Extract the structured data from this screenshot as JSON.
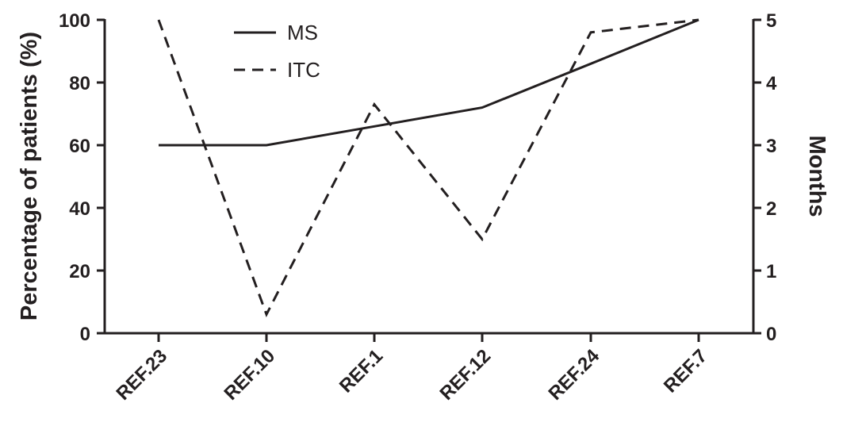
{
  "chart_data": {
    "type": "line",
    "categories": [
      "REF.23",
      "REF.10",
      "REF.1",
      "REF.12",
      "REF.24",
      "REF.7"
    ],
    "ylabel": "Percentage of patients (%)",
    "y2label": "Months",
    "ylim": [
      0,
      100
    ],
    "y2lim": [
      0,
      5
    ],
    "yticks": [
      "0",
      "20",
      "40",
      "60",
      "80",
      "100"
    ],
    "y2ticks": [
      "0",
      "1",
      "2",
      "3",
      "4",
      "5"
    ],
    "grid": false,
    "legend_position": "top-left",
    "series": [
      {
        "name": "MS",
        "axis": "left",
        "style": "solid",
        "values": [
          60,
          60,
          66,
          72,
          86,
          100
        ]
      },
      {
        "name": "ITC",
        "axis": "right",
        "style": "dashed",
        "values": [
          5.0,
          0.3,
          3.65,
          1.5,
          4.8,
          5.0
        ]
      }
    ],
    "colors": {
      "line": "#231f20"
    }
  }
}
